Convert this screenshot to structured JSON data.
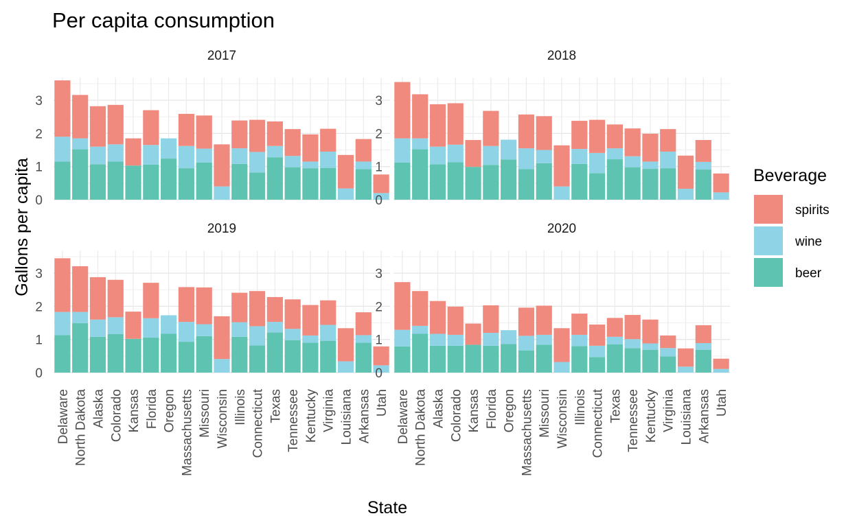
{
  "chart_data": {
    "type": "bar",
    "stacked": true,
    "title": "Per capita consumption",
    "xlabel": "State",
    "ylabel": "Gallons per capita",
    "ylim": [
      0,
      3.7
    ],
    "yticks": [
      0,
      1,
      2,
      3
    ],
    "grid": true,
    "legend": {
      "title": "Beverage",
      "position": "right",
      "entries": [
        "spirits",
        "wine",
        "beer"
      ]
    },
    "colors": {
      "spirits": "#F08A7E",
      "wine": "#8ED3E6",
      "beer": "#5EC4B1"
    },
    "categories": [
      "Delaware",
      "North Dakota",
      "Alaska",
      "Colorado",
      "Kansas",
      "Florida",
      "Oregon",
      "Massachusetts",
      "Missouri",
      "Wisconsin",
      "Illinois",
      "Connecticut",
      "Texas",
      "Tennessee",
      "Kentucky",
      "Virginia",
      "Louisiana",
      "Arkansas",
      "Utah"
    ],
    "panels": [
      {
        "label": "2017",
        "series": [
          {
            "name": "beer",
            "values": [
              1.15,
              1.52,
              1.07,
              1.15,
              1.03,
              1.06,
              1.24,
              0.95,
              1.12,
              0,
              1.08,
              0.82,
              1.28,
              0.98,
              0.95,
              0.96,
              0,
              0.92,
              0
            ]
          },
          {
            "name": "wine",
            "values": [
              0.75,
              0.33,
              0.53,
              0.52,
              0,
              0.59,
              0.61,
              0.67,
              0.42,
              0.4,
              0.47,
              0.62,
              0.34,
              0.34,
              0.2,
              0.49,
              0.34,
              0.23,
              0.2
            ]
          },
          {
            "name": "spirits",
            "values": [
              1.7,
              1.31,
              1.22,
              1.19,
              0.82,
              1.05,
              0,
              0.97,
              1.0,
              1.27,
              0.84,
              0.97,
              0.74,
              0.81,
              0.82,
              0.69,
              1.01,
              0.68,
              0.56
            ]
          }
        ]
      },
      {
        "label": "2018",
        "series": [
          {
            "name": "beer",
            "values": [
              1.12,
              1.52,
              1.07,
              1.13,
              0.99,
              1.05,
              1.21,
              0.92,
              1.1,
              0,
              1.08,
              0.8,
              1.22,
              0.98,
              0.93,
              0.95,
              0,
              0.91,
              0
            ]
          },
          {
            "name": "wine",
            "values": [
              0.73,
              0.33,
              0.53,
              0.53,
              0,
              0.57,
              0.6,
              0.63,
              0.4,
              0.4,
              0.45,
              0.61,
              0.33,
              0.33,
              0.22,
              0.5,
              0.33,
              0.23,
              0.22
            ]
          },
          {
            "name": "spirits",
            "values": [
              1.7,
              1.33,
              1.28,
              1.25,
              0.81,
              1.06,
              0,
              1.02,
              1.02,
              1.24,
              0.85,
              1.0,
              0.72,
              0.84,
              0.84,
              0.68,
              1.0,
              0.66,
              0.57
            ]
          }
        ]
      },
      {
        "label": "2019",
        "series": [
          {
            "name": "beer",
            "values": [
              1.13,
              1.49,
              1.08,
              1.16,
              1.02,
              1.06,
              1.17,
              0.93,
              1.1,
              0,
              1.08,
              0.82,
              1.21,
              0.98,
              0.9,
              0.96,
              0,
              0.9,
              0
            ]
          },
          {
            "name": "wine",
            "values": [
              0.7,
              0.34,
              0.52,
              0.51,
              0,
              0.58,
              0.56,
              0.6,
              0.36,
              0.41,
              0.44,
              0.58,
              0.32,
              0.34,
              0.22,
              0.48,
              0.34,
              0.23,
              0.22
            ]
          },
          {
            "name": "spirits",
            "values": [
              1.62,
              1.38,
              1.28,
              1.13,
              0.82,
              1.07,
              0,
              1.05,
              1.11,
              1.29,
              0.89,
              1.06,
              0.75,
              0.89,
              0.92,
              0.74,
              1.0,
              0.69,
              0.57
            ]
          }
        ]
      },
      {
        "label": "2020",
        "series": [
          {
            "name": "beer",
            "values": [
              0.79,
              1.17,
              0.81,
              0.81,
              0.84,
              0.81,
              0.86,
              0.67,
              0.84,
              0,
              0.8,
              0.47,
              0.85,
              0.74,
              0.69,
              0.49,
              0,
              0.69,
              0
            ]
          },
          {
            "name": "wine",
            "values": [
              0.5,
              0.24,
              0.36,
              0.33,
              0,
              0.39,
              0.42,
              0.44,
              0.3,
              0.32,
              0.34,
              0.34,
              0.23,
              0.27,
              0.19,
              0.25,
              0.18,
              0.2,
              0.11
            ]
          },
          {
            "name": "spirits",
            "values": [
              1.44,
              1.05,
              0.99,
              0.85,
              0.64,
              0.83,
              0,
              0.85,
              0.88,
              1.02,
              0.64,
              0.64,
              0.57,
              0.73,
              0.72,
              0.38,
              0.55,
              0.54,
              0.31
            ]
          }
        ]
      }
    ]
  }
}
